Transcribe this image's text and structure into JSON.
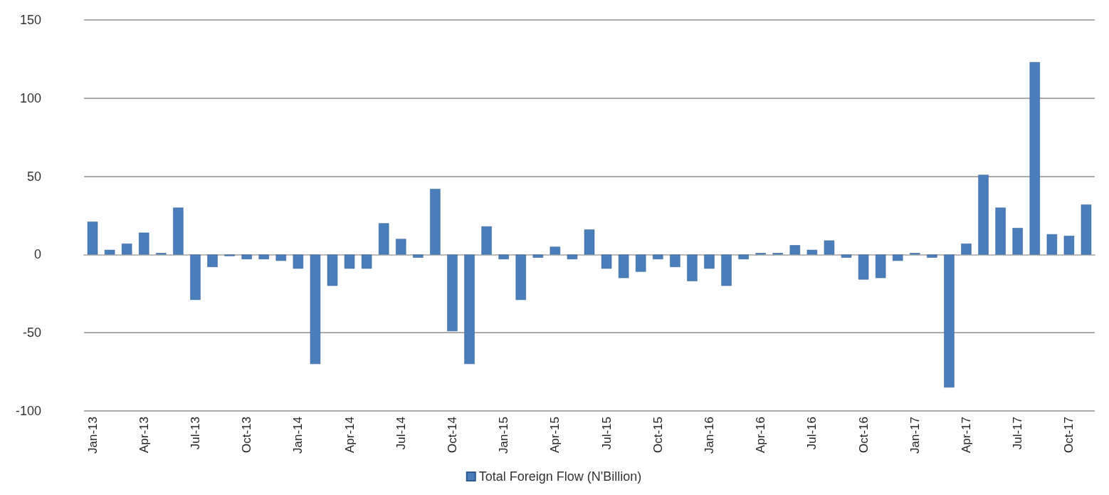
{
  "chart_data": {
    "type": "bar",
    "categories": [
      "Jan-13",
      null,
      null,
      "Apr-13",
      null,
      null,
      "Jul-13",
      null,
      null,
      "Oct-13",
      null,
      null,
      "Jan-14",
      null,
      null,
      "Apr-14",
      null,
      null,
      "Jul-14",
      null,
      null,
      "Oct-14",
      null,
      null,
      "Jan-15",
      null,
      null,
      "Apr-15",
      null,
      null,
      "Jul-15",
      null,
      null,
      "Oct-15",
      null,
      null,
      "Jan-16",
      null,
      null,
      "Apr-16",
      null,
      null,
      "Jul-16",
      null,
      null,
      "Oct-16",
      null,
      null,
      "Jan-17",
      null,
      null,
      "Apr-17",
      null,
      null,
      "Jul-17",
      null,
      null,
      "Oct-17",
      null
    ],
    "series": [
      {
        "name": "Total Foreign Flow (N'Billion)",
        "color": "#4a7ebb",
        "values": [
          21,
          3,
          7,
          14,
          1,
          30,
          -29,
          -8,
          -1,
          -3,
          -3,
          -4,
          -9,
          -70,
          -20,
          -9,
          -9,
          20,
          10,
          -2,
          42,
          -49,
          -70,
          18,
          -3,
          -29,
          -2,
          5,
          -3,
          16,
          -9,
          -15,
          -11,
          -3,
          -8,
          -17,
          -9,
          -20,
          -3,
          1,
          1,
          6,
          3,
          9,
          -2,
          -16,
          -15,
          -4,
          1,
          -2,
          -85,
          7,
          51,
          30,
          17,
          123,
          13,
          12,
          32
        ]
      }
    ],
    "ylim": [
      -100,
      150
    ],
    "yticks": [
      -100,
      -50,
      0,
      50,
      100,
      150
    ],
    "grid": "y",
    "legend": "bottom"
  }
}
